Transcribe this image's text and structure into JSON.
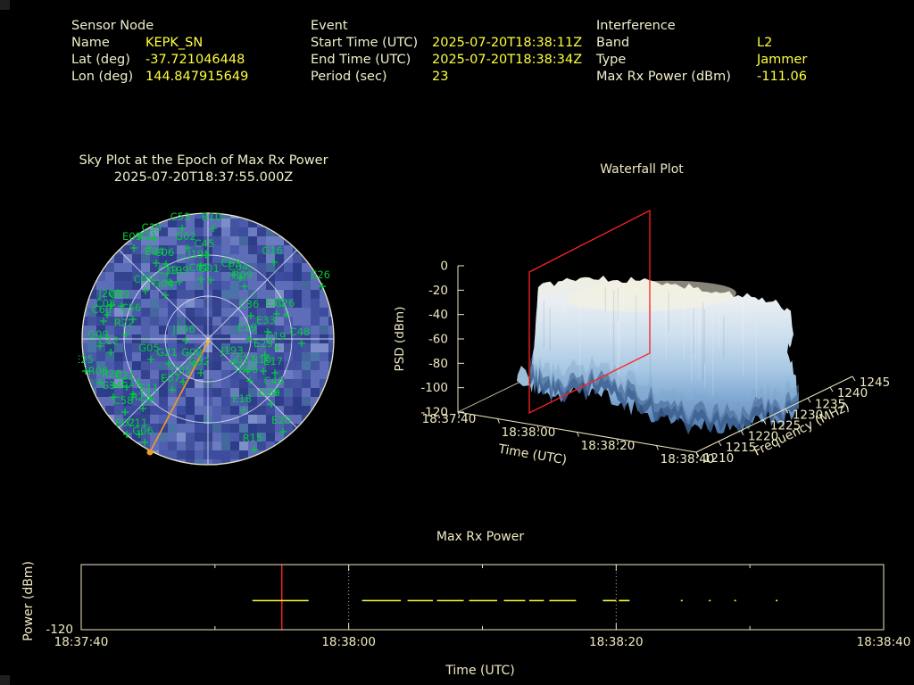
{
  "header": {
    "sensor": {
      "title": "Sensor Node",
      "rows": [
        {
          "label": "Name",
          "value": "KEPK_SN"
        },
        {
          "label": "Lat (deg)",
          "value": "-37.721046448"
        },
        {
          "label": "Lon (deg)",
          "value": "144.847915649"
        }
      ]
    },
    "event": {
      "title": "Event",
      "rows": [
        {
          "label": "Start Time (UTC)",
          "value": "2025-07-20T18:38:11Z"
        },
        {
          "label": "End Time (UTC)",
          "value": "2025-07-20T18:38:34Z"
        },
        {
          "label": "Period (sec)",
          "value": "23"
        }
      ]
    },
    "interference": {
      "title": "Interference",
      "rows": [
        {
          "label": "Band",
          "value": "L2"
        },
        {
          "label": "Type",
          "value": "Jammer"
        },
        {
          "label": "Max Rx Power (dBm)",
          "value": "-111.06"
        }
      ]
    }
  },
  "colors": {
    "background": "#000000",
    "label_text": "#f0eeca",
    "value_text": "#ffff3e",
    "satellite_green": "#00cd3c",
    "epoch_orange": "#f59a23",
    "slice_red": "#ff2222",
    "axis_cream": "#efe9c2",
    "data_yellow": "#ffff35",
    "grid_dotted": "#b9b7a6",
    "sky_blue_base": [
      "#3c4c9e",
      "#44549f",
      "#4a5aac",
      "#3a499a",
      "#42529e",
      "#505fae"
    ],
    "sky_blue_dark": [
      "#2e3d8a",
      "#35438f"
    ],
    "sky_blue_light": [
      "#5e6db8",
      "#6c7cc0",
      "#7e8ec8"
    ],
    "sky_blue_teal": [
      "#44679e",
      "#4a74a8"
    ]
  },
  "chart_data": [
    {
      "type": "polar_skyplot_heatmap",
      "title": "Sky Plot at the Epoch of Max Rx Power",
      "subtitle": "2025-07-20T18:37:55.000Z",
      "elevation_rings_deg": [
        0,
        30,
        60
      ],
      "azimuth_spoke_step_deg": 45,
      "interference_line": {
        "from": [
          145,
          148
        ],
        "to": [
          80,
          272
        ]
      },
      "satellites": [
        [
          "C53",
          114,
          8
        ],
        [
          "R10",
          149,
          8
        ],
        [
          "C35",
          82,
          20
        ],
        [
          "E09",
          60,
          30
        ],
        [
          "R21",
          77,
          30
        ],
        [
          "G02",
          120,
          30
        ],
        [
          "C45",
          141,
          38
        ],
        [
          "E04",
          85,
          47
        ],
        [
          "C06",
          96,
          48
        ],
        [
          "J195",
          135,
          50
        ],
        [
          "C39",
          100,
          68
        ],
        [
          "J199",
          111,
          68
        ],
        [
          "C01",
          135,
          65
        ],
        [
          "G01",
          146,
          66
        ],
        [
          "C03",
          73,
          78
        ],
        [
          "G04",
          95,
          83
        ],
        [
          "G16",
          217,
          46
        ],
        [
          "C63",
          171,
          60
        ],
        [
          "C04",
          179,
          64
        ],
        [
          "R09",
          184,
          73
        ],
        [
          "E26",
          271,
          73
        ],
        [
          "C36",
          191,
          106
        ],
        [
          "E30",
          220,
          104
        ],
        [
          "C26",
          231,
          105
        ],
        [
          "E33",
          210,
          124
        ],
        [
          "E19",
          189,
          132
        ],
        [
          "C19",
          221,
          142
        ],
        [
          "C48",
          248,
          137
        ],
        [
          "E29",
          207,
          150
        ],
        [
          "J196",
          118,
          134
        ],
        [
          "J200",
          35,
          94
        ],
        [
          "C09",
          46,
          95
        ],
        [
          "C08",
          30,
          105
        ],
        [
          "C60",
          26,
          112
        ],
        [
          "C56",
          59,
          110
        ],
        [
          "R22",
          51,
          127
        ],
        [
          "G09",
          22,
          140
        ],
        [
          "C12",
          34,
          147
        ],
        [
          "E25",
          6,
          168
        ],
        [
          "R08",
          22,
          181
        ],
        [
          "R26",
          37,
          184
        ],
        [
          "C21",
          52,
          186
        ],
        [
          "G34",
          37,
          197
        ],
        [
          "E14",
          59,
          194
        ],
        [
          "E11",
          79,
          200
        ],
        [
          "R23",
          70,
          210
        ],
        [
          "C58",
          50,
          214
        ],
        [
          "E02",
          52,
          239
        ],
        [
          "C11",
          66,
          239
        ],
        [
          "G06",
          72,
          248
        ],
        [
          "G05",
          79,
          155
        ],
        [
          "G21",
          99,
          160
        ],
        [
          "G08",
          127,
          160
        ],
        [
          "G32",
          135,
          170
        ],
        [
          "C05",
          115,
          180
        ],
        [
          "E07",
          103,
          189
        ],
        [
          "J193",
          172,
          158
        ],
        [
          "G31",
          187,
          168
        ],
        [
          "R16",
          205,
          168
        ],
        [
          "E17",
          218,
          170
        ],
        [
          "R06",
          190,
          179
        ],
        [
          "C46",
          219,
          192
        ],
        [
          "G28",
          214,
          205
        ],
        [
          "E18",
          183,
          212
        ],
        [
          "E20",
          227,
          236
        ],
        [
          "R15",
          195,
          256
        ]
      ]
    },
    {
      "type": "surface_waterfall_3d",
      "title": "Waterfall Plot",
      "z_axis": {
        "label": "PSD (dBm)",
        "ticks": [
          "0",
          "-20",
          "-40",
          "-60",
          "-80",
          "-100",
          "-120"
        ],
        "range": [
          0,
          -120
        ]
      },
      "x_axis": {
        "label": "Time (UTC)",
        "ticks": [
          "18:37:40",
          "18:38:00",
          "18:38:20",
          "18:38:40"
        ]
      },
      "y_axis": {
        "label": "Frequency (MHz)",
        "ticks": [
          "1210",
          "1215",
          "1220",
          "1225",
          "1230",
          "1235",
          "1240",
          "1245"
        ],
        "range": [
          1210,
          1245
        ]
      },
      "slice_marker": {
        "time": "18:37:55",
        "color": "#ff2222"
      },
      "signal": {
        "time_extent": [
          "18:37:53",
          "18:38:40"
        ],
        "freq_extent_mhz": [
          1211,
          1244
        ],
        "plateau_psd_dbm": [
          -40,
          -25
        ],
        "noise_floor_dbm": -120
      }
    },
    {
      "type": "line_segments",
      "title": "Max Rx Power",
      "xlabel": "Time (UTC)",
      "ylabel": "Power (dBm)",
      "x_ticks": [
        "18:37:40",
        "18:38:00",
        "18:38:20",
        "18:38:40"
      ],
      "x_range_sec": [
        0,
        60
      ],
      "ylim": [
        -120,
        -100
      ],
      "y_tick_labels": [
        "-120"
      ],
      "value_dbm": -111.06,
      "epoch_line_sec": 15,
      "grid_lines_sec": [
        20,
        40
      ],
      "segments_sec": [
        [
          12.8,
          17.0
        ],
        [
          21.0,
          23.9
        ],
        [
          24.4,
          26.3
        ],
        [
          26.6,
          28.6
        ],
        [
          29.0,
          31.1
        ],
        [
          31.6,
          33.2
        ],
        [
          33.5,
          34.6
        ],
        [
          35.0,
          37.0
        ],
        [
          39.0,
          40.0
        ],
        [
          40.2,
          41.0
        ]
      ],
      "points_sec": [
        44.9,
        47.0,
        48.9,
        52.0
      ]
    }
  ]
}
